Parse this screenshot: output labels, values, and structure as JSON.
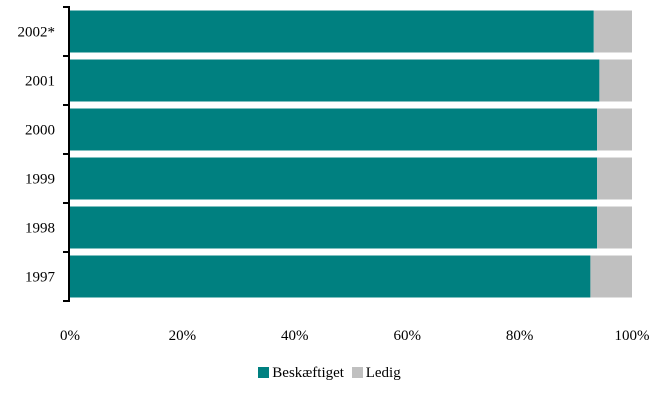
{
  "chart_data": {
    "type": "bar",
    "orientation": "horizontal",
    "stacked": true,
    "percent_stacked": true,
    "categories": [
      "2002*",
      "2001",
      "2000",
      "1999",
      "1998",
      "1997"
    ],
    "series": [
      {
        "name": "Beskæftiget",
        "color": "#008080",
        "values": [
          93.2,
          94.2,
          93.8,
          93.8,
          93.8,
          92.6
        ]
      },
      {
        "name": "Ledig",
        "color": "#c0c0c0",
        "values": [
          6.8,
          5.8,
          6.2,
          6.2,
          6.2,
          7.4
        ]
      }
    ],
    "x_ticks": [
      "0%",
      "20%",
      "40%",
      "60%",
      "80%",
      "100%"
    ],
    "xlim": [
      0,
      100
    ],
    "grid": false,
    "legend_position": "bottom"
  }
}
